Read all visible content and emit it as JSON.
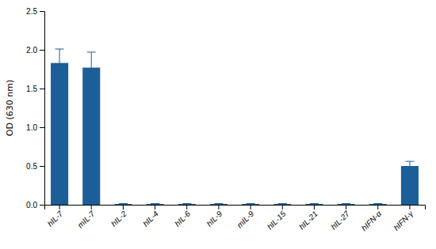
{
  "chart_data": {
    "type": "bar",
    "categories": [
      "hIL-7",
      "mIL-7",
      "hIL-2",
      "hIL-4",
      "hIL-6",
      "hIL-9",
      "mIL-9",
      "hIL-15",
      "hIL-21",
      "hIL-27",
      "hIFN-α",
      "hIFN-γ"
    ],
    "values": [
      1.83,
      1.77,
      0.01,
      0.01,
      0.01,
      0.01,
      0.01,
      0.01,
      0.01,
      0.01,
      0.01,
      0.5
    ],
    "errors": [
      0.18,
      0.2,
      0.005,
      0.005,
      0.005,
      0.005,
      0.005,
      0.005,
      0.005,
      0.005,
      0.005,
      0.06
    ],
    "color": "#1b5e99",
    "ylabel": "OD (630 nm)",
    "ylim": [
      0,
      2.5
    ],
    "yticks": [
      {
        "value": 0,
        "label": "0.0"
      },
      0.5,
      {
        "value": 1.0,
        "label": "1.0"
      },
      1.5,
      {
        "value": 2.0,
        "label": "2.0"
      },
      2.5
    ],
    "grid": false
  }
}
